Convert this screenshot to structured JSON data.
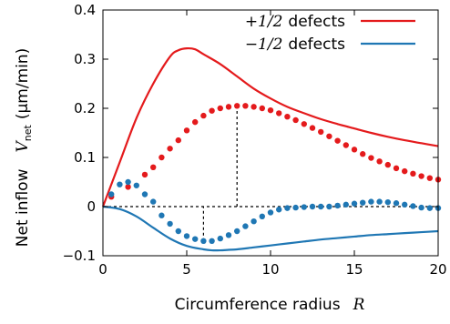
{
  "chart_data": {
    "type": "line",
    "xlabel_text": "Circumference radius",
    "xlabel_symbol": "R",
    "ylabel_text": "Net inflow",
    "ylabel_symbol": "V",
    "ylabel_sub": "net",
    "ylabel_units": "(μm/min)",
    "xlim": [
      0,
      20
    ],
    "ylim": [
      -0.1,
      0.4
    ],
    "x_ticks": [
      0,
      5,
      10,
      15,
      20
    ],
    "x_tick_labels": [
      "0",
      "5",
      "10",
      "15",
      "20"
    ],
    "y_ticks": [
      -0.1,
      0,
      0.1,
      0.2,
      0.3,
      0.4
    ],
    "y_tick_labels": [
      "−0.1",
      "0",
      "0.1",
      "0.2",
      "0.3",
      "0.4"
    ],
    "grid": false,
    "legend_position": "top-right",
    "series": [
      {
        "name": "+1/2 defects",
        "legend_math": "+1/2",
        "legend_word": "defects",
        "color": "#e41a1c",
        "style": "line",
        "x": [
          0,
          1,
          2,
          3,
          4,
          4.5,
          5,
          5.5,
          6,
          7,
          8,
          9,
          10,
          11,
          12,
          13,
          14,
          15,
          16,
          17,
          18,
          19,
          20
        ],
        "y": [
          0,
          0.09,
          0.18,
          0.25,
          0.305,
          0.318,
          0.322,
          0.32,
          0.31,
          0.29,
          0.265,
          0.24,
          0.22,
          0.203,
          0.19,
          0.178,
          0.168,
          0.159,
          0.15,
          0.142,
          0.135,
          0.129,
          0.123
        ]
      },
      {
        "name": "−1/2 defects",
        "legend_math": "−1/2",
        "legend_word": "defects",
        "color": "#1f77b4",
        "style": "line",
        "x": [
          0,
          1,
          2,
          3,
          4,
          5,
          6,
          6.5,
          7,
          7.5,
          8,
          9,
          10,
          11,
          12,
          13,
          14,
          15,
          16,
          17,
          18,
          19,
          20
        ],
        "y": [
          0,
          -0.005,
          -0.02,
          -0.043,
          -0.065,
          -0.08,
          -0.087,
          -0.089,
          -0.089,
          -0.088,
          -0.087,
          -0.083,
          -0.079,
          -0.075,
          -0.071,
          -0.067,
          -0.064,
          -0.061,
          -0.058,
          -0.056,
          -0.054,
          -0.052,
          -0.05
        ]
      },
      {
        "name": "",
        "color": "#e41a1c",
        "style": "dots",
        "x": [
          0.5,
          1.5,
          2.5,
          3,
          3.5,
          4,
          4.5,
          5,
          5.5,
          6,
          6.5,
          7,
          7.5,
          8,
          8.5,
          9,
          9.5,
          10,
          10.5,
          11,
          11.5,
          12,
          12.5,
          13,
          13.5,
          14,
          14.5,
          15,
          15.5,
          16,
          16.5,
          17,
          17.5,
          18,
          18.5,
          19,
          19.5,
          20
        ],
        "y": [
          0.02,
          0.04,
          0.065,
          0.08,
          0.1,
          0.118,
          0.135,
          0.155,
          0.172,
          0.185,
          0.195,
          0.2,
          0.203,
          0.205,
          0.205,
          0.203,
          0.2,
          0.196,
          0.19,
          0.183,
          0.176,
          0.168,
          0.16,
          0.152,
          0.143,
          0.134,
          0.125,
          0.116,
          0.107,
          0.099,
          0.092,
          0.085,
          0.078,
          0.072,
          0.067,
          0.062,
          0.058,
          0.055
        ]
      },
      {
        "name": "",
        "color": "#1f77b4",
        "style": "dots",
        "x": [
          0.5,
          1,
          1.5,
          2,
          2.5,
          3,
          3.5,
          4,
          4.5,
          5,
          5.5,
          6,
          6.5,
          7,
          7.5,
          8,
          8.5,
          9,
          9.5,
          10,
          10.5,
          11,
          11.5,
          12,
          12.5,
          13,
          13.5,
          14,
          14.5,
          15,
          15.5,
          16,
          16.5,
          17,
          17.5,
          18,
          18.5,
          19,
          19.5,
          20
        ],
        "y": [
          0.025,
          0.045,
          0.05,
          0.043,
          0.025,
          0.01,
          -0.018,
          -0.035,
          -0.05,
          -0.06,
          -0.066,
          -0.07,
          -0.07,
          -0.065,
          -0.058,
          -0.05,
          -0.04,
          -0.03,
          -0.02,
          -0.012,
          -0.006,
          -0.003,
          -0.002,
          -0.001,
          0,
          0,
          0,
          0.002,
          0.004,
          0.006,
          0.008,
          0.01,
          0.01,
          0.009,
          0.007,
          0.004,
          0.001,
          -0.002,
          -0.003,
          -0.003
        ]
      }
    ],
    "reference_lines": [
      {
        "type": "horizontal",
        "y": 0,
        "x_from": 0,
        "x_to": 20,
        "style": "dotted",
        "color": "#000000"
      },
      {
        "type": "vertical",
        "x": 8,
        "y_from": 0,
        "y_to": 0.205,
        "style": "dotted",
        "color": "#000000"
      },
      {
        "type": "vertical",
        "x": 6,
        "y_from": -0.07,
        "y_to": 0,
        "style": "dotted",
        "color": "#000000"
      }
    ]
  }
}
